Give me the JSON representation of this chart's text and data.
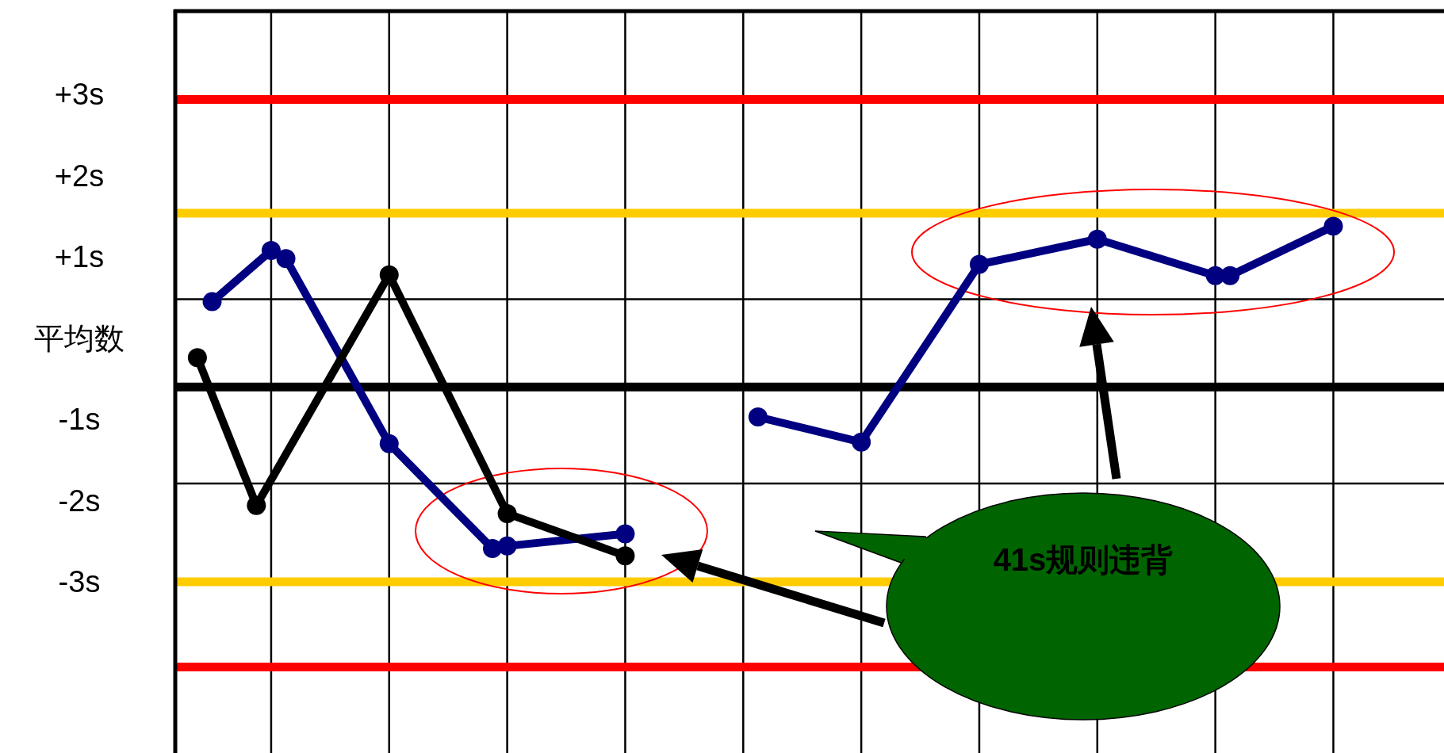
{
  "chart_data": {
    "type": "line",
    "categories": [
      null,
      null,
      null,
      null,
      null,
      null,
      null,
      null,
      null,
      null,
      null,
      null,
      null,
      null,
      null,
      null,
      null,
      null,
      null,
      null,
      null,
      null,
      null,
      null,
      null,
      null,
      null,
      null,
      null,
      null,
      null,
      null,
      null,
      null,
      null,
      null,
      null,
      null,
      null,
      null,
      null,
      null,
      null,
      null,
      null,
      null,
      null,
      null,
      null,
      null,
      null,
      null,
      null,
      null,
      null,
      null,
      null,
      null,
      null,
      null,
      null,
      null,
      null,
      null,
      null,
      null,
      null,
      null,
      null,
      null,
      null,
      null,
      null,
      null,
      null,
      null,
      null,
      null,
      null,
      null,
      null,
      null,
      null,
      null,
      null,
      null
    ],
    "ylim": [
      -5.11,
      4.03
    ],
    "yticks": [
      {
        "value": 3,
        "label": "+3s"
      },
      {
        "value": 2,
        "label": "+2s"
      },
      {
        "value": 1,
        "label": "+1s"
      },
      {
        "value": 0,
        "label": "平均数"
      },
      {
        "value": -1,
        "label": "-1s"
      },
      {
        "value": -2,
        "label": "-2s"
      },
      {
        "value": -3,
        "label": "-3s"
      }
    ],
    "tick_labels": "y",
    "grid": "x",
    "marker": "circle",
    "line_style": "solid",
    "ref_lines": [
      {
        "axis": "y",
        "value": 0.48
      },
      {
        "axis": "y",
        "value": -1.79
      },
      {
        "axis": "y",
        "value": 2.94,
        "color": "#ff0000"
      },
      {
        "axis": "y",
        "value": 1.54,
        "color": "#ffcc00"
      },
      {
        "axis": "y",
        "value": -0.6,
        "color": "#000000"
      },
      {
        "axis": "y",
        "value": -3.0,
        "color": "#ffcc00"
      },
      {
        "axis": "y",
        "value": -4.05,
        "color": "#ff0000"
      }
    ],
    "series": [
      {
        "color": "#000080",
        "values": [
          null,
          null,
          0.45,
          null,
          null,
          null,
          1.08,
          0.98,
          null,
          null,
          null,
          null,
          null,
          null,
          -1.3,
          null,
          null,
          null,
          null,
          null,
          null,
          -2.59,
          -2.56,
          null,
          null,
          null,
          null,
          null,
          null,
          null,
          -2.41,
          null,
          null,
          null,
          null,
          null,
          null,
          null,
          null,
          null,
          null,
          null,
          null,
          null,
          null,
          null,
          null,
          null,
          null,
          null,
          null,
          null,
          null,
          null,
          null,
          null,
          null,
          null,
          null,
          null,
          null,
          null,
          null,
          null,
          null,
          null,
          null,
          null,
          null,
          null,
          null,
          null,
          null,
          null,
          null,
          null,
          null,
          null,
          null,
          null,
          null,
          null,
          null,
          null,
          null,
          null
        ]
      },
      {
        "color": "#000080",
        "values": [
          null,
          null,
          null,
          null,
          null,
          null,
          null,
          null,
          null,
          null,
          null,
          null,
          null,
          null,
          null,
          null,
          null,
          null,
          null,
          null,
          null,
          null,
          null,
          null,
          null,
          null,
          null,
          null,
          null,
          null,
          null,
          null,
          null,
          null,
          null,
          null,
          null,
          null,
          null,
          -0.97,
          null,
          null,
          null,
          null,
          null,
          null,
          -1.28,
          null,
          null,
          null,
          null,
          null,
          null,
          null,
          0.91,
          null,
          null,
          null,
          null,
          null,
          null,
          null,
          1.22,
          null,
          null,
          null,
          null,
          null,
          null,
          null,
          0.77,
          0.77,
          null,
          null,
          null,
          null,
          null,
          null,
          1.38,
          null,
          null,
          null,
          null,
          null,
          null,
          null
        ]
      },
      {
        "color": "#000000",
        "values": [
          null,
          -0.24,
          null,
          null,
          null,
          -2.06,
          null,
          null,
          null,
          null,
          null,
          null,
          null,
          null,
          0.78,
          null,
          null,
          null,
          null,
          null,
          null,
          null,
          -2.16,
          null,
          null,
          null,
          null,
          null,
          null,
          null,
          -2.68,
          null,
          null,
          null,
          null,
          null,
          null,
          null,
          null,
          null,
          null,
          null,
          null,
          null,
          null,
          null,
          null,
          null,
          null,
          null,
          null,
          null,
          null,
          null,
          null,
          null,
          null,
          null,
          null,
          null,
          null,
          null,
          null,
          null,
          null,
          null,
          null,
          null,
          null,
          null,
          null,
          null,
          null,
          null,
          null,
          null,
          null,
          null,
          null,
          null,
          null,
          null,
          null,
          null,
          null,
          null
        ]
      }
    ],
    "annotations": [
      "41s规则违背"
    ]
  }
}
